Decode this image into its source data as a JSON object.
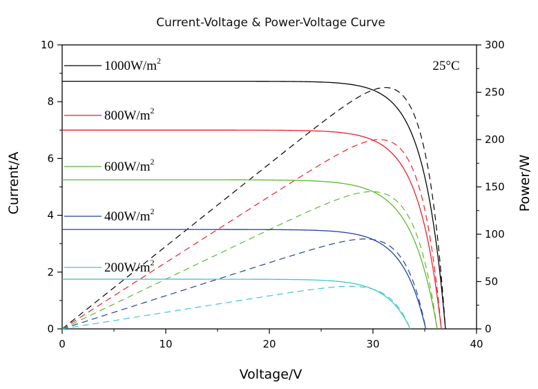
{
  "chart_data": {
    "type": "line",
    "title": "Current-Voltage & Power-Voltage Curve",
    "xlabel": "Voltage/V",
    "ylabel": "Current/A",
    "y2label": "Power/W",
    "annotation": "25°C",
    "xlim": [
      0,
      40
    ],
    "ylim": [
      0,
      10
    ],
    "y2lim": [
      0,
      300
    ],
    "xticks": [
      "0",
      "10",
      "20",
      "30",
      "40"
    ],
    "yticks": [
      "0",
      "2",
      "4",
      "6",
      "8",
      "10"
    ],
    "y2ticks": [
      "0",
      "50",
      "100",
      "150",
      "200",
      "250",
      "300"
    ],
    "grid": false,
    "legend_position": "left",
    "series": [
      {
        "name": "1000W/m²",
        "label_main": "1000W/m",
        "label_sup": "2",
        "color": "#000000",
        "isc": 8.72,
        "voc": 37.0,
        "pmax": 255,
        "vmp": 30.0
      },
      {
        "name": "800W/m²",
        "label_main": "800W/m",
        "label_sup": "2",
        "color": "#ee1c24",
        "isc": 7.0,
        "voc": 36.6,
        "pmax": 200,
        "vmp": 29.5
      },
      {
        "name": "600W/m²",
        "label_main": "600W/m",
        "label_sup": "2",
        "color": "#5ab82b",
        "isc": 5.25,
        "voc": 36.2,
        "pmax": 145,
        "vmp": 29.0
      },
      {
        "name": "400W/m²",
        "label_main": "400W/m",
        "label_sup": "2",
        "color": "#1f3f9f",
        "isc": 3.5,
        "voc": 35.1,
        "pmax": 95,
        "vmp": 29.0
      },
      {
        "name": "200W/m²",
        "label_main": "200W/m",
        "label_sup": "2",
        "color": "#40c4c8",
        "isc": 1.75,
        "voc": 33.6,
        "pmax": 45,
        "vmp": 28.5
      }
    ]
  }
}
